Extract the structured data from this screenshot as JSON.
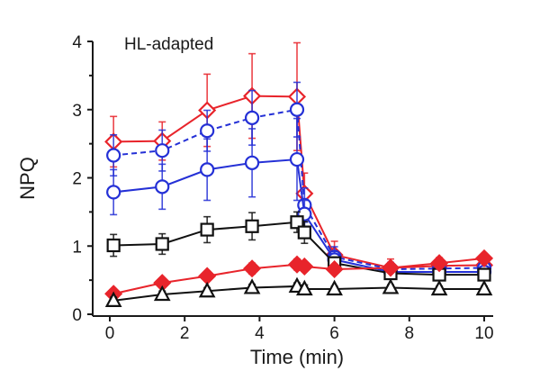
{
  "chart_data": {
    "type": "line",
    "title": "",
    "annotation": "HL-adapted",
    "xlabel": "Time (min)",
    "ylabel": "NPQ",
    "xlim": [
      -0.5,
      10.5
    ],
    "ylim": [
      0,
      4
    ],
    "xticks": [
      0,
      2,
      4,
      6,
      8,
      10
    ],
    "yticks": [
      0,
      1,
      2,
      3,
      4
    ],
    "yminor_ticks": [
      0.5,
      1.5,
      2.5,
      3.5
    ],
    "grid": false,
    "legend": "none",
    "series": [
      {
        "name": "red-open-diamond",
        "color": "#e8242b",
        "marker": "diamond",
        "filled": false,
        "dashed": false,
        "x": [
          0.1,
          1.4,
          2.6,
          3.8,
          5.0,
          5.2,
          6.0,
          7.5,
          8.8,
          10.0
        ],
        "y": [
          2.53,
          2.54,
          2.99,
          3.2,
          3.19,
          1.77,
          0.87,
          0.68,
          0.71,
          0.72
        ],
        "err": [
          0.37,
          0.28,
          0.53,
          0.62,
          0.79,
          0.3,
          0.2,
          0.13,
          0.12,
          0.1
        ]
      },
      {
        "name": "blue-open-circle-dashed",
        "color": "#2430d6",
        "marker": "circle",
        "filled": false,
        "dashed": true,
        "x": [
          0.1,
          1.4,
          2.6,
          3.8,
          5.0,
          5.2,
          6.0,
          7.5,
          8.8,
          10.0
        ],
        "y": [
          2.33,
          2.4,
          2.69,
          2.88,
          3.0,
          1.6,
          0.84,
          0.66,
          0.67,
          0.68
        ],
        "err": [
          0.3,
          0.3,
          0.3,
          0.4,
          0.4,
          0.25,
          0.15,
          0.1,
          0.1,
          0.1
        ]
      },
      {
        "name": "blue-open-circle",
        "color": "#2430d6",
        "marker": "circle",
        "filled": false,
        "dashed": false,
        "x": [
          0.1,
          1.4,
          2.6,
          3.8,
          5.0,
          5.2,
          6.0,
          7.5,
          8.8,
          10.0
        ],
        "y": [
          1.79,
          1.87,
          2.12,
          2.22,
          2.27,
          1.47,
          0.8,
          0.62,
          0.62,
          0.62
        ],
        "err": [
          0.33,
          0.33,
          0.45,
          0.5,
          0.6,
          0.2,
          0.12,
          0.08,
          0.08,
          0.08
        ]
      },
      {
        "name": "black-open-square",
        "color": "#111111",
        "marker": "square",
        "filled": false,
        "dashed": false,
        "x": [
          0.1,
          1.4,
          2.6,
          3.8,
          5.0,
          5.2,
          6.0,
          7.5,
          8.8,
          10.0
        ],
        "y": [
          1.01,
          1.03,
          1.24,
          1.29,
          1.35,
          1.2,
          0.75,
          0.6,
          0.58,
          0.58
        ],
        "err": [
          0.16,
          0.15,
          0.19,
          0.2,
          0.15,
          0.16,
          0.08,
          0.06,
          0.06,
          0.06
        ]
      },
      {
        "name": "red-filled-diamond",
        "color": "#e8242b",
        "marker": "diamond",
        "filled": true,
        "dashed": false,
        "x": [
          0.1,
          1.4,
          2.6,
          3.8,
          5.0,
          5.2,
          6.0,
          7.5,
          8.8,
          10.0
        ],
        "y": [
          0.3,
          0.46,
          0.56,
          0.67,
          0.73,
          0.7,
          0.66,
          0.68,
          0.75,
          0.82
        ],
        "err": [
          0.05,
          0.06,
          0.07,
          0.08,
          0.08,
          0.07,
          0.06,
          0.06,
          0.07,
          0.07
        ]
      },
      {
        "name": "black-open-triangle",
        "color": "#111111",
        "marker": "triangle",
        "filled": false,
        "dashed": false,
        "x": [
          0.1,
          1.4,
          2.6,
          3.8,
          5.0,
          5.2,
          6.0,
          7.5,
          8.8,
          10.0
        ],
        "y": [
          0.2,
          0.29,
          0.34,
          0.39,
          0.41,
          0.37,
          0.37,
          0.39,
          0.37,
          0.37
        ],
        "err": [
          0.05,
          0.05,
          0.05,
          0.05,
          0.05,
          0.06,
          0.04,
          0.04,
          0.04,
          0.04
        ]
      }
    ]
  }
}
